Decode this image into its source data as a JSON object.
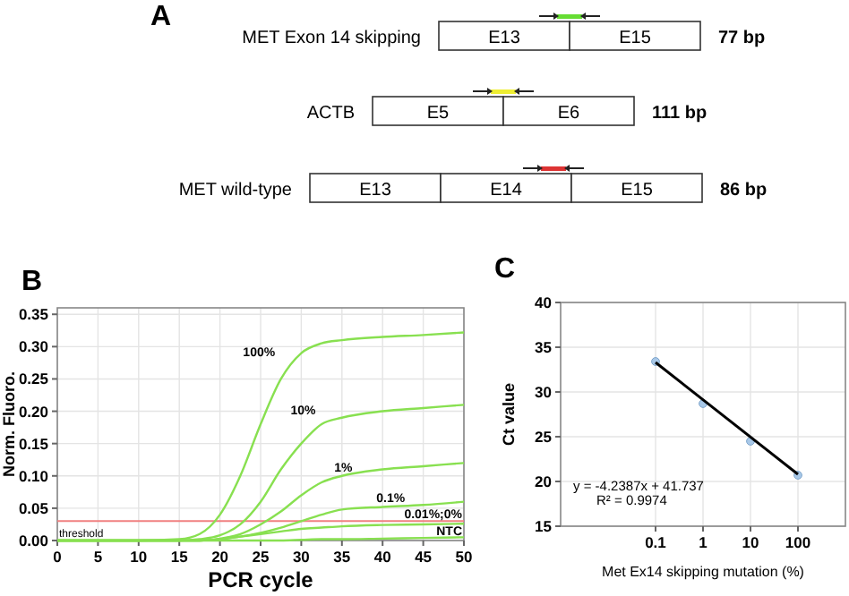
{
  "chart_data": [
    {
      "type": "other",
      "title": "A",
      "y_categories": [
        "MET Exon 14 skipping",
        "ACTB",
        "MET wild-type"
      ],
      "cells": [
        [
          "E13",
          "E15"
        ],
        [
          "E5",
          "E6"
        ],
        [
          "E13",
          "E14",
          "E15"
        ]
      ],
      "y2_categories": [
        "77 bp",
        "111 bp",
        "86 bp"
      ],
      "colors": [
        "#66dd33",
        "#eeee33",
        "#dd3333"
      ]
    },
    {
      "type": "line",
      "title": "B",
      "xlabel": "PCR cycle",
      "ylabel": "Norm. Fluoro.",
      "xlim": [
        0,
        50
      ],
      "xticks": [
        0,
        5,
        10,
        15,
        20,
        25,
        30,
        35,
        40,
        45,
        50
      ],
      "ylim": [
        0,
        0.36
      ],
      "yticks": [
        {
          "value": 0,
          "label": "0.00"
        },
        {
          "value": 0.05,
          "label": "0.05"
        },
        {
          "value": 0.1,
          "label": "0.10"
        },
        {
          "value": 0.15,
          "label": "0.15"
        },
        {
          "value": 0.2,
          "label": "0.20"
        },
        {
          "value": 0.25,
          "label": "0.25"
        },
        {
          "value": 0.3,
          "label": "0.30"
        },
        {
          "value": 0.35,
          "label": "0.35"
        }
      ],
      "grid": true,
      "marker": "none",
      "x": [
        0,
        5,
        10,
        15,
        17.5,
        20,
        22.5,
        25,
        27.5,
        30,
        32.5,
        35,
        40,
        45,
        50
      ],
      "series": [
        {
          "name": "100%",
          "color": "#88e050",
          "values": [
            0,
            0,
            0,
            0.002,
            0.01,
            0.04,
            0.1,
            0.18,
            0.25,
            0.29,
            0.305,
            0.31,
            0.315,
            0.318,
            0.322
          ]
        },
        {
          "name": "10%",
          "color": "#88e050",
          "values": [
            0,
            0,
            0,
            0,
            0.002,
            0.008,
            0.025,
            0.06,
            0.11,
            0.15,
            0.18,
            0.19,
            0.2,
            0.205,
            0.21
          ]
        },
        {
          "name": "1%",
          "color": "#88e050",
          "values": [
            0,
            0,
            0,
            0,
            0,
            0.003,
            0.01,
            0.025,
            0.045,
            0.07,
            0.09,
            0.1,
            0.11,
            0.115,
            0.12
          ]
        },
        {
          "name": "0.1%",
          "color": "#88e050",
          "values": [
            0,
            0,
            0,
            0,
            0,
            0.002,
            0.006,
            0.012,
            0.02,
            0.03,
            0.04,
            0.048,
            0.052,
            0.055,
            0.06
          ]
        },
        {
          "name": "0.01%;0%",
          "color": "#88e050",
          "values": [
            0,
            0,
            0,
            0,
            0,
            0.002,
            0.006,
            0.01,
            0.014,
            0.018,
            0.02,
            0.022,
            0.024,
            0.025,
            0.026
          ]
        },
        {
          "name": "NTC",
          "color": "#88e050",
          "values": [
            0,
            0,
            0,
            0,
            0,
            0,
            0,
            0,
            0,
            0.001,
            0.002,
            0.002,
            0.003,
            0.004,
            0.005
          ]
        }
      ],
      "ref_lines": [
        {
          "axis": "y",
          "value": 0.03,
          "label": "threshold",
          "color": "#f08080"
        }
      ]
    },
    {
      "type": "scatter",
      "title": "C",
      "xlabel": "Met Ex14 skipping mutation (%)",
      "ylabel": "Ct value",
      "log": "x",
      "xlim": [
        0.001,
        1000
      ],
      "xticks": [
        0.1,
        1,
        10,
        100
      ],
      "ylim": [
        15,
        40
      ],
      "yticks": [
        15,
        20,
        25,
        30,
        35,
        40
      ],
      "grid": true,
      "series": [
        {
          "type": "scatter",
          "color": "#a8c8e8",
          "marker": "circle",
          "x": [
            0.1,
            1,
            10,
            100
          ],
          "values": [
            33.4,
            28.7,
            24.5,
            20.7
          ]
        },
        {
          "type": "line",
          "color": "#000000",
          "marker": "none",
          "x": [
            0.1,
            100
          ],
          "values": [
            33.3,
            20.8
          ]
        }
      ],
      "annotations": [
        "y = -4.2387x + 41.737",
        "R² = 0.9974"
      ]
    }
  ]
}
